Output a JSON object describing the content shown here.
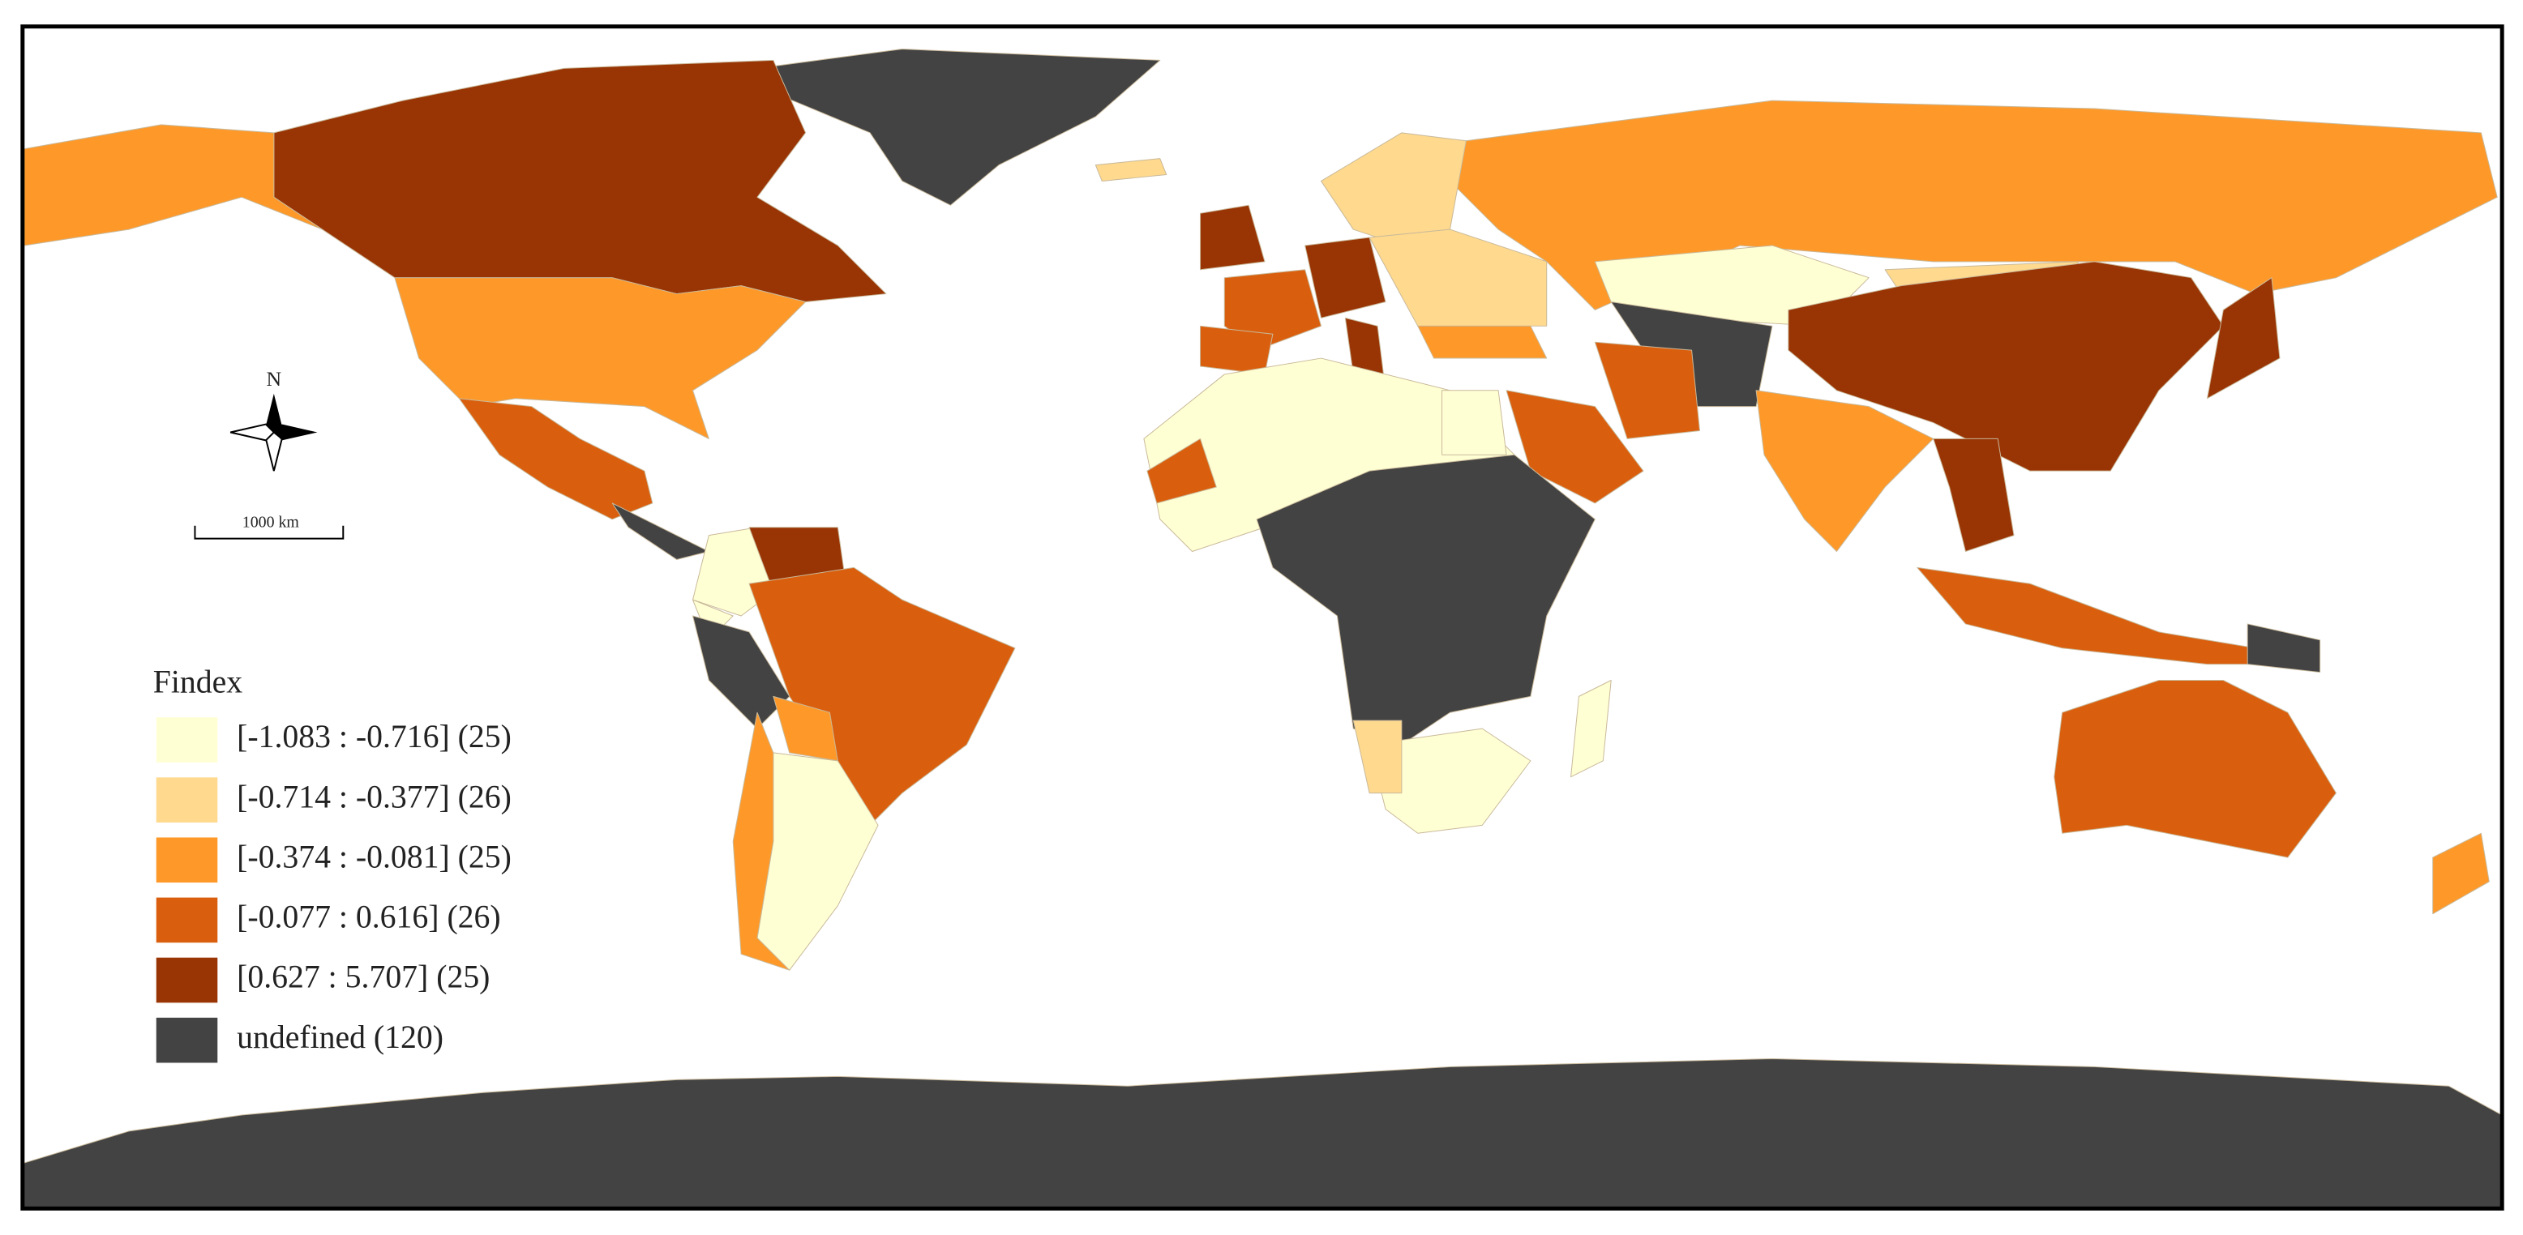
{
  "map": {
    "legend": {
      "title": "Findex",
      "items": [
        {
          "label": "[-1.083 : -0.716] (25)",
          "color": "#ffffd4"
        },
        {
          "label": "[-0.714 : -0.377] (26)",
          "color": "#fed98e"
        },
        {
          "label": "[-0.374 : -0.081] (25)",
          "color": "#fe9929"
        },
        {
          "label": "[-0.077 : 0.616] (26)",
          "color": "#d95f0e"
        },
        {
          "label": "[0.627 : 5.707] (25)",
          "color": "#993404"
        },
        {
          "label": "undefined (120)",
          "color": "#434343"
        }
      ]
    },
    "compass": "N",
    "scale_bar": "1000 km"
  }
}
